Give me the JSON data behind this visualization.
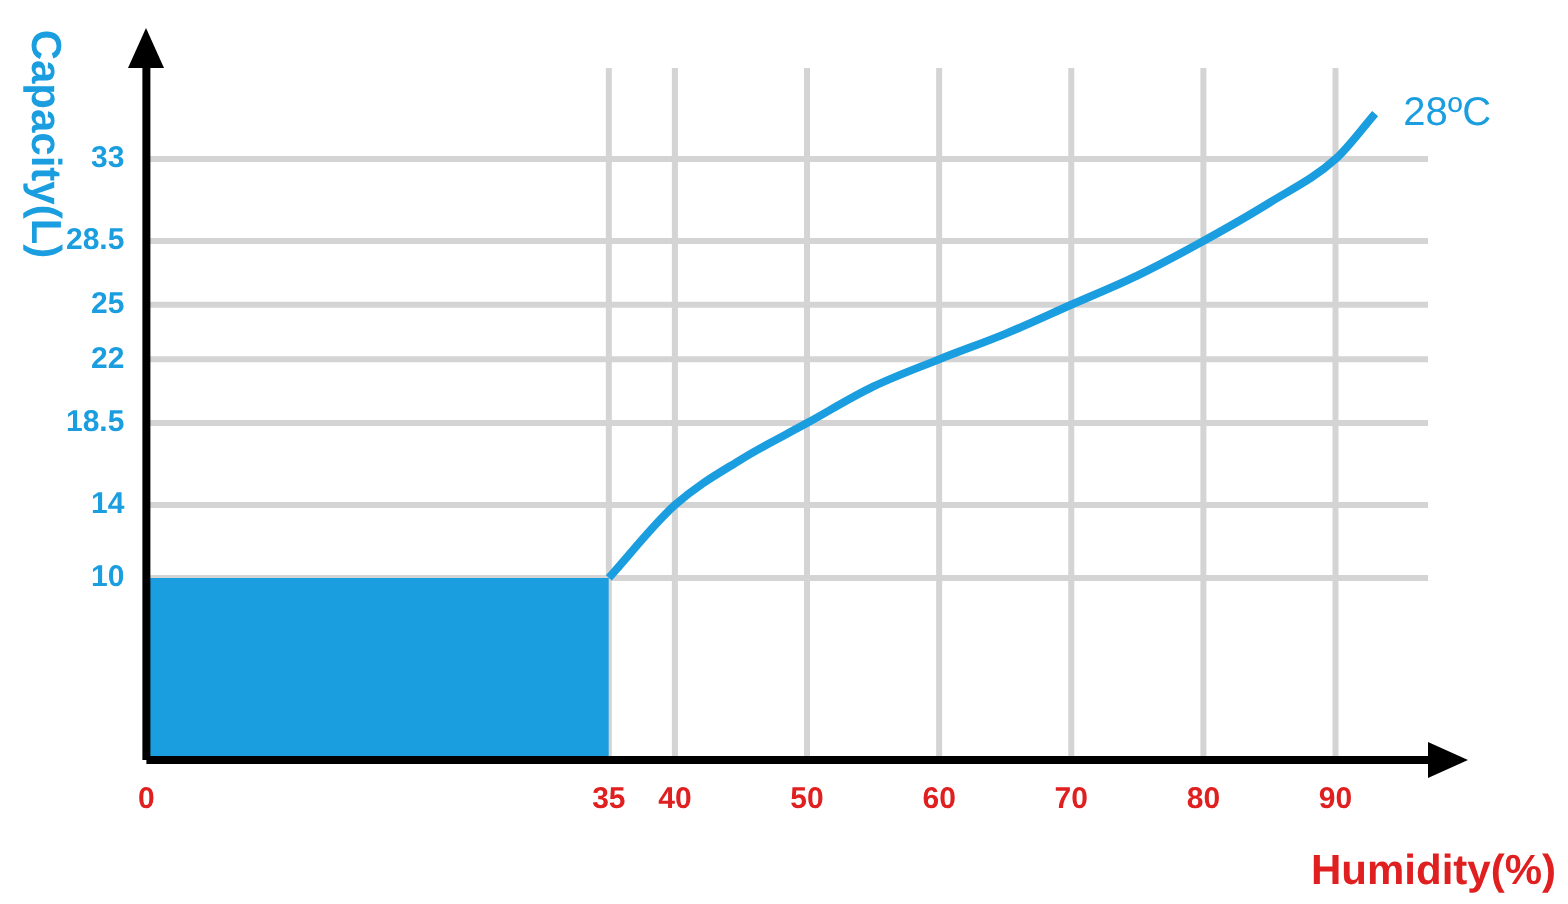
{
  "chart_data": {
    "type": "line",
    "xlabel": "Humidity(%)",
    "ylabel": "Capacity(L)",
    "xlim": [
      0,
      97
    ],
    "ylim": [
      0,
      38
    ],
    "xticks": [
      0,
      35,
      40,
      50,
      60,
      70,
      80,
      90
    ],
    "yticks": [
      10,
      14,
      18.5,
      22,
      25,
      28.5,
      33
    ],
    "grid": true,
    "legend": false,
    "marker": "none",
    "line_style": "solid",
    "series": [
      {
        "type": "area",
        "color": "#1a9ee0",
        "x": [
          0,
          35
        ],
        "values": [
          10,
          10
        ]
      },
      {
        "type": "line",
        "name": "28ºC",
        "color": "#1a9ee0",
        "x": [
          35,
          40,
          45,
          50,
          55,
          60,
          65,
          70,
          75,
          80,
          85,
          90,
          93
        ],
        "values": [
          10,
          14,
          16.5,
          18.5,
          20.5,
          22,
          23.4,
          25,
          26.6,
          28.5,
          30.6,
          33,
          35.5
        ]
      }
    ]
  }
}
